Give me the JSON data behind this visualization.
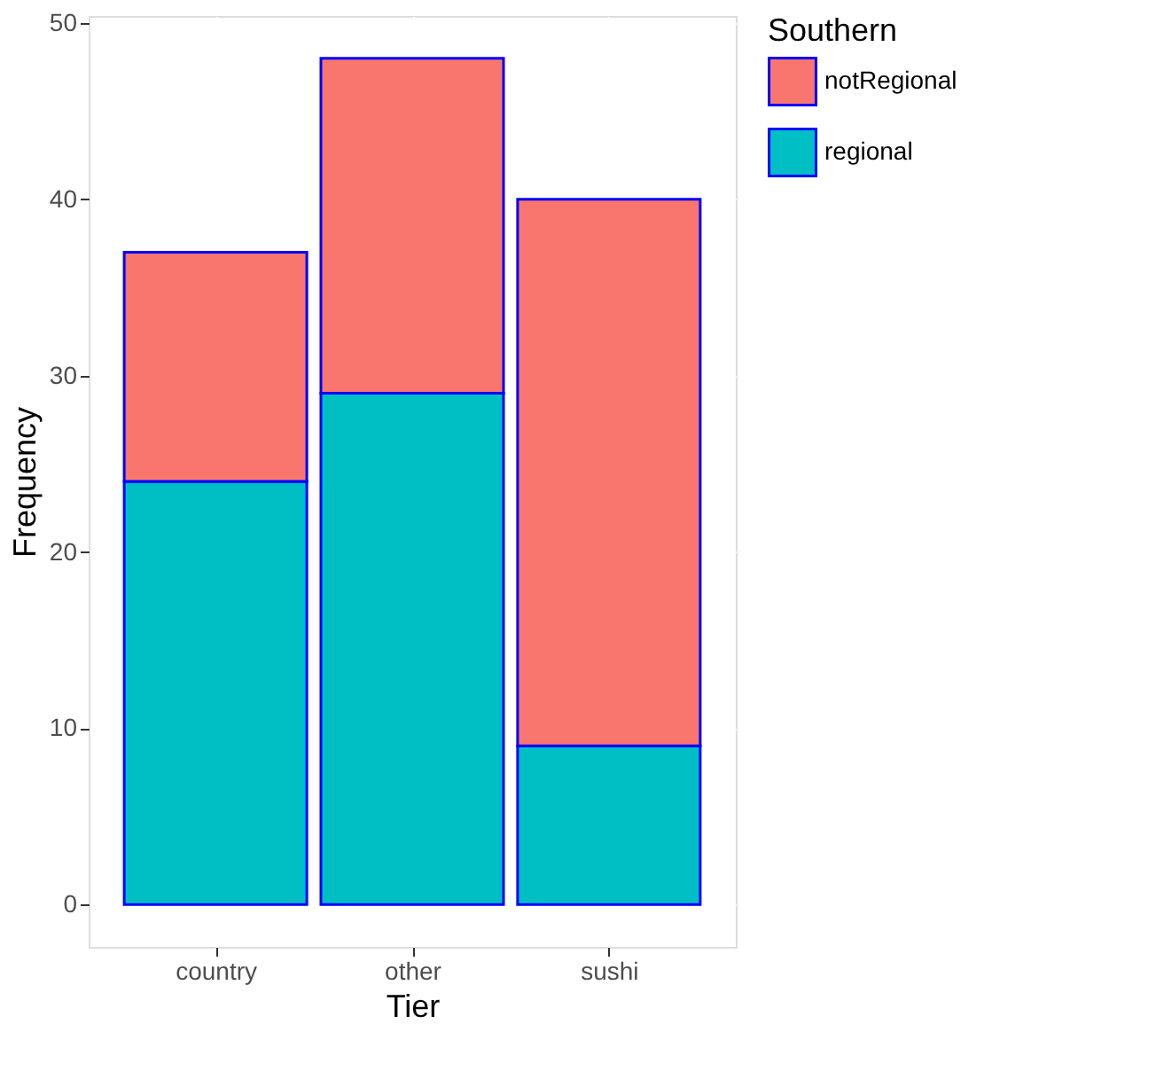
{
  "chart_data": {
    "type": "bar",
    "stacked": true,
    "xlabel": "Tier",
    "ylabel": "Frequency",
    "legend_title": "Southern",
    "legend": "right",
    "categories": [
      "country",
      "other",
      "sushi"
    ],
    "series": [
      {
        "name": "regional",
        "color": "#00bfc4",
        "values": [
          24,
          29,
          9
        ]
      },
      {
        "name": "notRegional",
        "color": "#f8766d",
        "values": [
          13,
          19,
          31
        ]
      }
    ],
    "ylim": [
      -2.4,
      50.4
    ],
    "yticks": [
      0,
      10,
      20,
      30,
      40,
      50
    ],
    "grid": true
  }
}
